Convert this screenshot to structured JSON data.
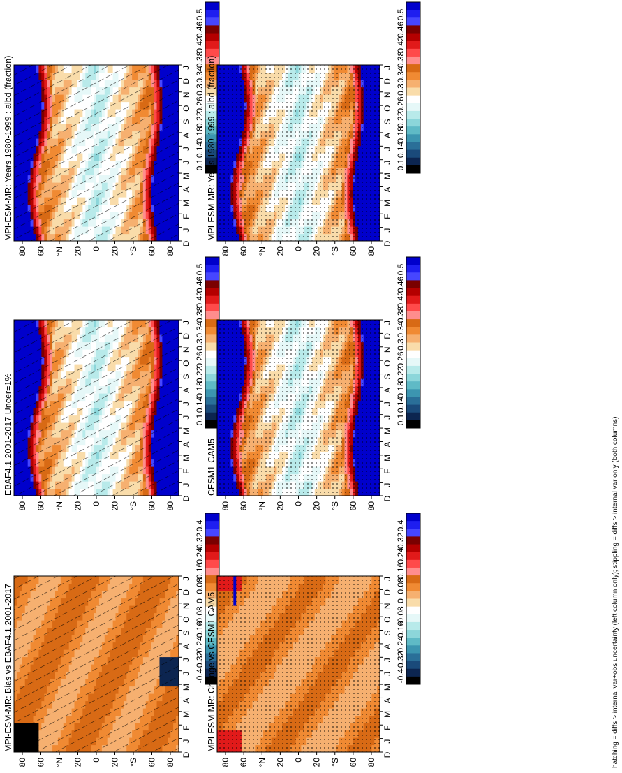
{
  "footer": "hatching = diffs > internal var+obs uncertainty (left column only); stippling = diffs > internal var only (both columns)",
  "chart_data": [
    {
      "type": "heatmap",
      "title": "MPI-ESM-MR: Years 1980-1999 : albd (fraction)",
      "x_ticks": [
        "D",
        "J",
        "F",
        "M",
        "A",
        "M",
        "J",
        "J",
        "A",
        "S",
        "O",
        "N",
        "D",
        "J"
      ],
      "y_ticks": [
        "80",
        "60",
        "°N",
        "20",
        "0",
        "20",
        "°S",
        "60",
        "80"
      ],
      "colorbar_labels": [
        "0.5",
        "0.46",
        "0.42",
        "0.38",
        "0.34",
        "0.3",
        "0.26",
        "0.22",
        "0.18",
        "0.14",
        "0.1"
      ],
      "colors": [
        "#0000cc",
        "#1e1ef0",
        "#4646ff",
        "#7a0000",
        "#b40000",
        "#e11a1a",
        "#ff4a4a",
        "#ff8d8d",
        "#d86a15",
        "#f08a33",
        "#f6b070",
        "#f9dcaa",
        "#ffffff",
        "#e6f8f8",
        "#b8eaea",
        "#8cd6da",
        "#5fbac6",
        "#3c95b0",
        "#2a6f98",
        "#1a4a7a",
        "#0c2550",
        "#000000"
      ],
      "field": "albedo",
      "overlay": "hatch"
    },
    {
      "type": "heatmap",
      "title": "MPI-ESM-MR: Years 1980-1999 : albd (fraction)",
      "x_ticks": [
        "D",
        "J",
        "F",
        "M",
        "A",
        "M",
        "J",
        "J",
        "A",
        "S",
        "O",
        "N",
        "D",
        "J"
      ],
      "y_ticks": [
        "80",
        "60",
        "°N",
        "20",
        "0",
        "20",
        "°S",
        "60",
        "80"
      ],
      "colorbar_labels": [
        "0.5",
        "0.46",
        "0.42",
        "0.38",
        "0.34",
        "0.3",
        "0.26",
        "0.22",
        "0.18",
        "0.14",
        "0.1"
      ],
      "colors": [
        "#0000cc",
        "#1e1ef0",
        "#4646ff",
        "#7a0000",
        "#b40000",
        "#e11a1a",
        "#ff4a4a",
        "#ff8d8d",
        "#d86a15",
        "#f08a33",
        "#f6b070",
        "#f9dcaa",
        "#ffffff",
        "#e6f8f8",
        "#b8eaea",
        "#8cd6da",
        "#5fbac6",
        "#3c95b0",
        "#2a6f98",
        "#1a4a7a",
        "#0c2550",
        "#000000"
      ],
      "field": "albedo",
      "overlay": "stipple"
    },
    {
      "type": "heatmap",
      "title": "EBAF4.1 2001-2017 Uncer=1%",
      "x_ticks": [
        "D",
        "J",
        "F",
        "M",
        "A",
        "M",
        "J",
        "J",
        "A",
        "S",
        "O",
        "N",
        "D",
        "J"
      ],
      "y_ticks": [
        "80",
        "60",
        "°N",
        "20",
        "0",
        "20",
        "°S",
        "60",
        "80"
      ],
      "colorbar_labels": [
        "0.5",
        "0.46",
        "0.42",
        "0.38",
        "0.34",
        "0.3",
        "0.26",
        "0.22",
        "0.18",
        "0.14",
        "0.1"
      ],
      "colors": [
        "#0000cc",
        "#1e1ef0",
        "#4646ff",
        "#7a0000",
        "#b40000",
        "#e11a1a",
        "#ff4a4a",
        "#ff8d8d",
        "#d86a15",
        "#f08a33",
        "#f6b070",
        "#f9dcaa",
        "#ffffff",
        "#e6f8f8",
        "#b8eaea",
        "#8cd6da",
        "#5fbac6",
        "#3c95b0",
        "#2a6f98",
        "#1a4a7a",
        "#0c2550",
        "#000000"
      ],
      "field": "albedo",
      "overlay": "hatch"
    },
    {
      "type": "heatmap",
      "title": "CESM1-CAM5",
      "x_ticks": [
        "D",
        "J",
        "F",
        "M",
        "A",
        "M",
        "J",
        "J",
        "A",
        "S",
        "O",
        "N",
        "D",
        "J"
      ],
      "y_ticks": [
        "80",
        "60",
        "°N",
        "20",
        "0",
        "20",
        "°S",
        "60",
        "80"
      ],
      "colorbar_labels": [
        "0.5",
        "0.46",
        "0.42",
        "0.38",
        "0.34",
        "0.3",
        "0.26",
        "0.22",
        "0.18",
        "0.14",
        "0.1"
      ],
      "colors": [
        "#0000cc",
        "#1e1ef0",
        "#4646ff",
        "#7a0000",
        "#b40000",
        "#e11a1a",
        "#ff4a4a",
        "#ff8d8d",
        "#d86a15",
        "#f08a33",
        "#f6b070",
        "#f9dcaa",
        "#ffffff",
        "#e6f8f8",
        "#b8eaea",
        "#8cd6da",
        "#5fbac6",
        "#3c95b0",
        "#2a6f98",
        "#1a4a7a",
        "#0c2550",
        "#000000"
      ],
      "field": "albedo",
      "overlay": "stipple"
    },
    {
      "type": "heatmap",
      "title": "MPI-ESM-MR: Bias vs EBAF4.1 2001-2017",
      "x_ticks": [
        "D",
        "J",
        "F",
        "M",
        "A",
        "M",
        "J",
        "J",
        "A",
        "S",
        "O",
        "N",
        "D",
        "J"
      ],
      "y_ticks": [
        "80",
        "60",
        "°N",
        "20",
        "0",
        "20",
        "°S",
        "60",
        "80"
      ],
      "colorbar_labels": [
        "0.4",
        "0.32",
        "0.24",
        "0.16",
        "0.08",
        "0",
        "-0.08",
        "-0.16",
        "-0.24",
        "-0.32",
        "-0.4"
      ],
      "colors": [
        "#0000cc",
        "#1e1ef0",
        "#4646ff",
        "#7a0000",
        "#b40000",
        "#e11a1a",
        "#ff4a4a",
        "#ff8d8d",
        "#d86a15",
        "#f08a33",
        "#f6b070",
        "#f9dcaa",
        "#ffffff",
        "#e6f8f8",
        "#b8eaea",
        "#8cd6da",
        "#5fbac6",
        "#3c95b0",
        "#2a6f98",
        "#1a4a7a",
        "#0c2550",
        "#000000"
      ],
      "field": "bias",
      "overlay": "hatch"
    },
    {
      "type": "heatmap",
      "title": "MPI-ESM-MR: Change vs CESM1-CAM5",
      "x_ticks": [
        "D",
        "J",
        "F",
        "M",
        "A",
        "M",
        "J",
        "J",
        "A",
        "S",
        "O",
        "N",
        "D",
        "J"
      ],
      "y_ticks": [
        "80",
        "60",
        "°N",
        "20",
        "0",
        "20",
        "°S",
        "60",
        "80"
      ],
      "colorbar_labels": [
        "0.4",
        "0.32",
        "0.24",
        "0.16",
        "0.08",
        "0",
        "-0.08",
        "-0.16",
        "-0.24",
        "-0.32",
        "-0.4"
      ],
      "colors": [
        "#0000cc",
        "#1e1ef0",
        "#4646ff",
        "#7a0000",
        "#b40000",
        "#e11a1a",
        "#ff4a4a",
        "#ff8d8d",
        "#d86a15",
        "#f08a33",
        "#f6b070",
        "#f9dcaa",
        "#ffffff",
        "#e6f8f8",
        "#b8eaea",
        "#8cd6da",
        "#5fbac6",
        "#3c95b0",
        "#2a6f98",
        "#1a4a7a",
        "#0c2550",
        "#000000"
      ],
      "field": "change",
      "overlay": "stipple"
    }
  ]
}
